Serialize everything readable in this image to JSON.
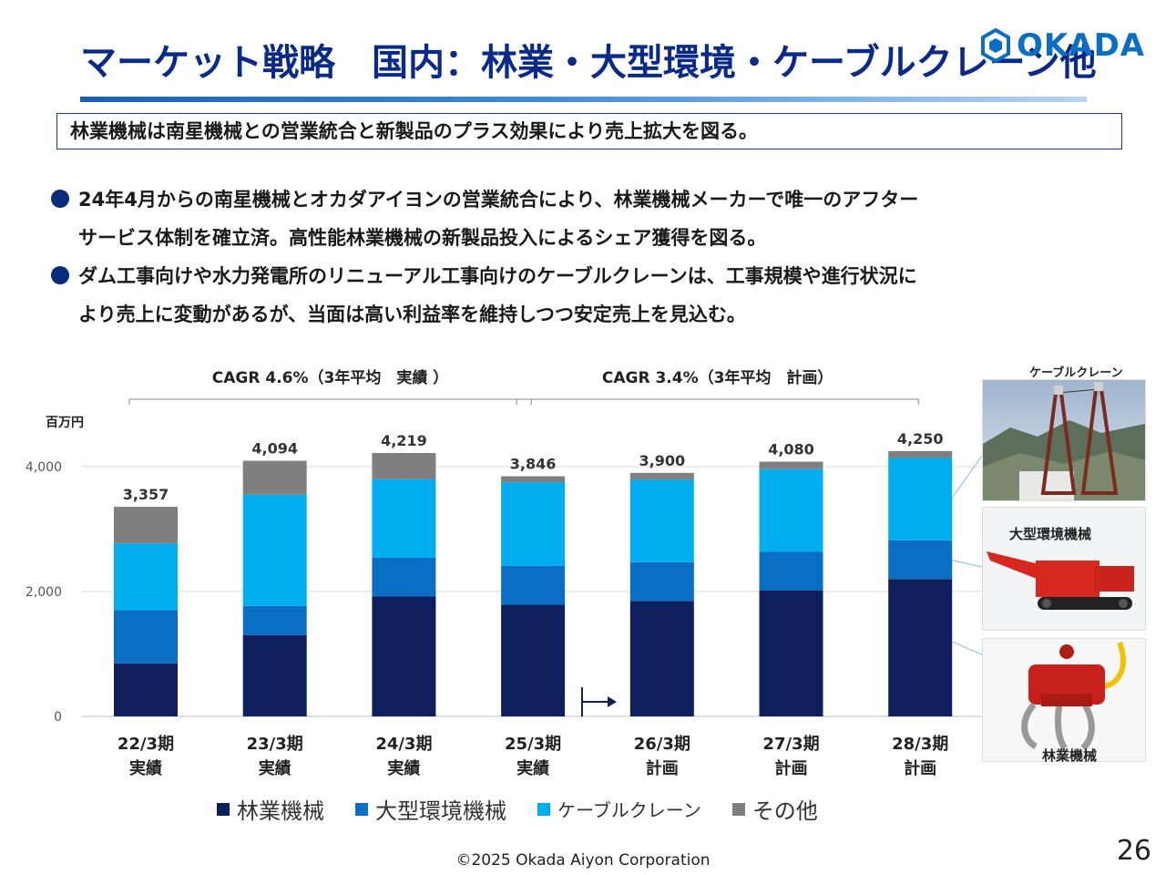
{
  "title": "マーケット戦略　国内：林業・大型環境・ケーブルクレーン他",
  "logo": {
    "text": "OKADA",
    "color": "#0a6fc4"
  },
  "summary": "林業機械は南星機械との営業統合と新製品のプラス効果により売上拡大を図る。",
  "bullets": [
    {
      "line1": "24年4月からの南星機械とオカダアイヨンの営業統合により、林業機械メーカーで唯一のアフター",
      "line2": "サービス体制を確立済。高性能林業機械の新製品投入によるシェア獲得を図る。"
    },
    {
      "line1": "ダム工事向けや水力発電所のリニューアル工事向けのケーブルクレーンは、工事規模や進行状況に",
      "line2": "より売上に変動があるが、当面は高い利益率を維持しつつ安定売上を見込む。"
    }
  ],
  "chart_data": {
    "type": "bar",
    "stacked": true,
    "unit_label": "百万円",
    "categories": [
      {
        "line1": "22/3期",
        "line2": "実績"
      },
      {
        "line1": "23/3期",
        "line2": "実績"
      },
      {
        "line1": "24/3期",
        "line2": "実績"
      },
      {
        "line1": "25/3期",
        "line2": "実績"
      },
      {
        "line1": "26/3期",
        "line2": "計画"
      },
      {
        "line1": "27/3期",
        "line2": "計画"
      },
      {
        "line1": "28/3期",
        "line2": "計画"
      }
    ],
    "series": [
      {
        "name": "林業機械",
        "color": "#0d1f5c",
        "values": [
          850,
          1300,
          1920,
          1790,
          1850,
          2020,
          2200
        ]
      },
      {
        "name": "大型環境機械",
        "color": "#0a6fc4",
        "values": [
          850,
          470,
          620,
          620,
          620,
          620,
          620
        ]
      },
      {
        "name": "ケーブルクレーン",
        "color": "#00aeef",
        "values": [
          1070,
          1780,
          1260,
          1340,
          1320,
          1320,
          1320
        ]
      },
      {
        "name": "その他",
        "color": "#7f7f7f",
        "values": [
          587,
          544,
          419,
          96,
          110,
          120,
          110
        ]
      }
    ],
    "totals": [
      3357,
      4094,
      4219,
      3846,
      3900,
      4080,
      4250
    ],
    "total_labels": [
      "3,357",
      "4,094",
      "4,219",
      "3,846",
      "3,900",
      "4,080",
      "4,250"
    ],
    "yticks": [
      0,
      2000,
      4000
    ],
    "ytick_labels": [
      "0",
      "2,000",
      "4,000"
    ],
    "ylim": [
      0,
      4600
    ],
    "grid": true,
    "legend_position": "bottom",
    "cagr": [
      {
        "label": "CAGR 4.6%（3年平均　実績 ）",
        "from": 0,
        "to": 3
      },
      {
        "label": "CAGR 3.4%（3年平均　計画）",
        "from": 3,
        "to": 6
      }
    ],
    "plan_start_marker": true
  },
  "photos": [
    {
      "label": "ケーブルクレーン"
    },
    {
      "label": "大型環境機械"
    },
    {
      "label": "林業機械"
    }
  ],
  "footer": "©2025 Okada Aiyon Corporation",
  "page_number": "26"
}
